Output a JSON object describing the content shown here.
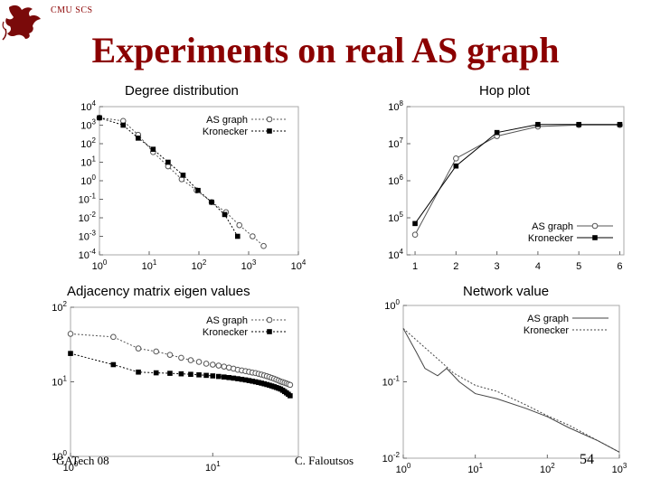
{
  "header": {
    "org": "CMU SCS",
    "title": "Experiments on real AS graph"
  },
  "footer": {
    "left": "GATech 08",
    "center": "C. Faloutsos",
    "page": "54"
  },
  "chart_data": [
    {
      "id": "deg",
      "type": "scatter",
      "title": "Degree distribution",
      "xscale": "log",
      "yscale": "log",
      "xlim": [
        1,
        10000
      ],
      "ylim": [
        0.0001,
        10000
      ],
      "xticks": [
        1,
        10,
        100,
        1000,
        10000
      ],
      "xtick_labels": [
        "10^0",
        "10^1",
        "10^2",
        "10^3",
        "10^4"
      ],
      "yticks": [
        10000,
        1000,
        100,
        10,
        1,
        0.1,
        0.01,
        0.001,
        0.0001
      ],
      "ytick_labels": [
        "10^4",
        "10^3",
        "10^2",
        "10^1",
        "10^0",
        "10^-1",
        "10^-2",
        "10^-3",
        "10^-4"
      ],
      "legend_position": "top-right",
      "series": [
        {
          "name": "AS graph",
          "marker": "circle",
          "line": "dotted",
          "color": "#555555",
          "x": [
            1,
            3,
            6,
            12,
            24,
            45,
            90,
            180,
            350,
            650,
            1200,
            2000
          ],
          "y": [
            2500,
            1700,
            300,
            35,
            6,
            1.2,
            0.3,
            0.07,
            0.02,
            0.004,
            0.001,
            0.0003
          ]
        },
        {
          "name": "Kronecker",
          "marker": "square",
          "line": "dotted",
          "color": "#000000",
          "x": [
            1,
            3,
            6,
            12,
            24,
            48,
            96,
            180,
            330,
            600
          ],
          "y": [
            2500,
            1000,
            200,
            50,
            10,
            2,
            0.3,
            0.07,
            0.015,
            0.001
          ]
        }
      ]
    },
    {
      "id": "hop",
      "type": "line",
      "title": "Hop plot",
      "yscale": "log",
      "xlim": [
        0.8,
        6.1
      ],
      "ylim": [
        10000,
        100000000
      ],
      "xticks": [
        1,
        2,
        3,
        4,
        5,
        6
      ],
      "xtick_labels": [
        "1",
        "2",
        "3",
        "4",
        "5",
        "6"
      ],
      "yticks": [
        100000000,
        10000000,
        1000000,
        100000,
        10000
      ],
      "ytick_labels": [
        "10^8",
        "10^7",
        "10^6",
        "10^5",
        "10^4"
      ],
      "legend_position": "bottom-right",
      "series": [
        {
          "name": "AS graph",
          "marker": "circle",
          "line": "solid",
          "color": "#555555",
          "x": [
            1,
            2,
            3,
            4,
            5,
            6
          ],
          "y": [
            35000,
            4000000,
            16000000,
            29000000,
            32000000,
            32000000
          ]
        },
        {
          "name": "Kronecker",
          "marker": "square",
          "line": "solid",
          "color": "#000000",
          "x": [
            1,
            2,
            3,
            4,
            5,
            6
          ],
          "y": [
            70000,
            2500000,
            20000000,
            33000000,
            33000000,
            33000000
          ]
        }
      ]
    },
    {
      "id": "eig",
      "type": "scatter",
      "title": "Adjacency matrix eigen values",
      "xscale": "log",
      "yscale": "log",
      "xlim": [
        1,
        40
      ],
      "ylim": [
        1,
        100
      ],
      "xticks": [
        1,
        10
      ],
      "xtick_labels": [
        "10^0",
        "10^1"
      ],
      "yticks": [
        100,
        10,
        1
      ],
      "ytick_labels": [
        "10^2",
        "10^1",
        "10^0"
      ],
      "legend_position": "top-right",
      "series": [
        {
          "name": "AS graph",
          "marker": "circle",
          "line": "dotted",
          "color": "#555555",
          "x": [
            1,
            2,
            3,
            4,
            5,
            6,
            7,
            8,
            9,
            10,
            11,
            12,
            13,
            14,
            15,
            16,
            17,
            18,
            19,
            20,
            21,
            22,
            23,
            24,
            25,
            26,
            27,
            28,
            29,
            30,
            31,
            32,
            33,
            34,
            35
          ],
          "y": [
            44,
            40,
            28,
            25.5,
            23,
            21,
            19.5,
            18.5,
            17.5,
            17,
            16.5,
            16,
            15.5,
            15,
            14.5,
            14.2,
            13.9,
            13.6,
            13.3,
            13.1,
            12.8,
            12.5,
            12.2,
            11.9,
            11.6,
            11.3,
            11,
            10.7,
            10.4,
            10.1,
            9.9,
            9.7,
            9.5,
            9.3,
            9.1
          ]
        },
        {
          "name": "Kronecker",
          "marker": "square",
          "line": "dotted",
          "color": "#000000",
          "x": [
            1,
            2,
            3,
            4,
            5,
            6,
            7,
            8,
            9,
            10,
            11,
            12,
            13,
            14,
            15,
            16,
            17,
            18,
            19,
            20,
            21,
            22,
            23,
            24,
            25,
            26,
            27,
            28,
            29,
            30,
            31,
            32,
            33,
            34,
            35
          ],
          "y": [
            24,
            17,
            13.5,
            13.2,
            13,
            12.8,
            12.6,
            12.4,
            12.2,
            12,
            11.8,
            11.6,
            11.4,
            11.2,
            11,
            10.8,
            10.6,
            10.4,
            10.2,
            10,
            9.8,
            9.6,
            9.4,
            9.2,
            9,
            8.8,
            8.6,
            8.4,
            8.2,
            8,
            7.7,
            7.4,
            7.1,
            6.8,
            6.5
          ]
        }
      ]
    },
    {
      "id": "net",
      "type": "line",
      "title": "Network value",
      "xscale": "log",
      "yscale": "log",
      "xlim": [
        1,
        1000
      ],
      "ylim": [
        0.01,
        1
      ],
      "xticks": [
        1,
        10,
        100,
        1000
      ],
      "xtick_labels": [
        "10^0",
        "10^1",
        "10^2",
        "10^3"
      ],
      "yticks": [
        1,
        0.1,
        0.01
      ],
      "ytick_labels": [
        "10^0",
        "10^-1",
        "10^-2"
      ],
      "legend_position": "top-right",
      "series": [
        {
          "name": "AS graph",
          "line": "solid",
          "color": "#444444",
          "x": [
            1,
            1.5,
            2,
            3,
            4,
            6,
            10,
            20,
            50,
            100,
            200,
            500,
            1000
          ],
          "y": [
            0.5,
            0.25,
            0.15,
            0.12,
            0.15,
            0.1,
            0.07,
            0.06,
            0.045,
            0.035,
            0.025,
            0.017,
            0.012
          ]
        },
        {
          "name": "Kronecker",
          "line": "dotted",
          "color": "#444444",
          "x": [
            1,
            2,
            3,
            5,
            10,
            20,
            50,
            100,
            200,
            500,
            1000
          ],
          "y": [
            0.5,
            0.28,
            0.2,
            0.13,
            0.09,
            0.075,
            0.05,
            0.036,
            0.027,
            0.017,
            0.012
          ]
        }
      ]
    }
  ]
}
